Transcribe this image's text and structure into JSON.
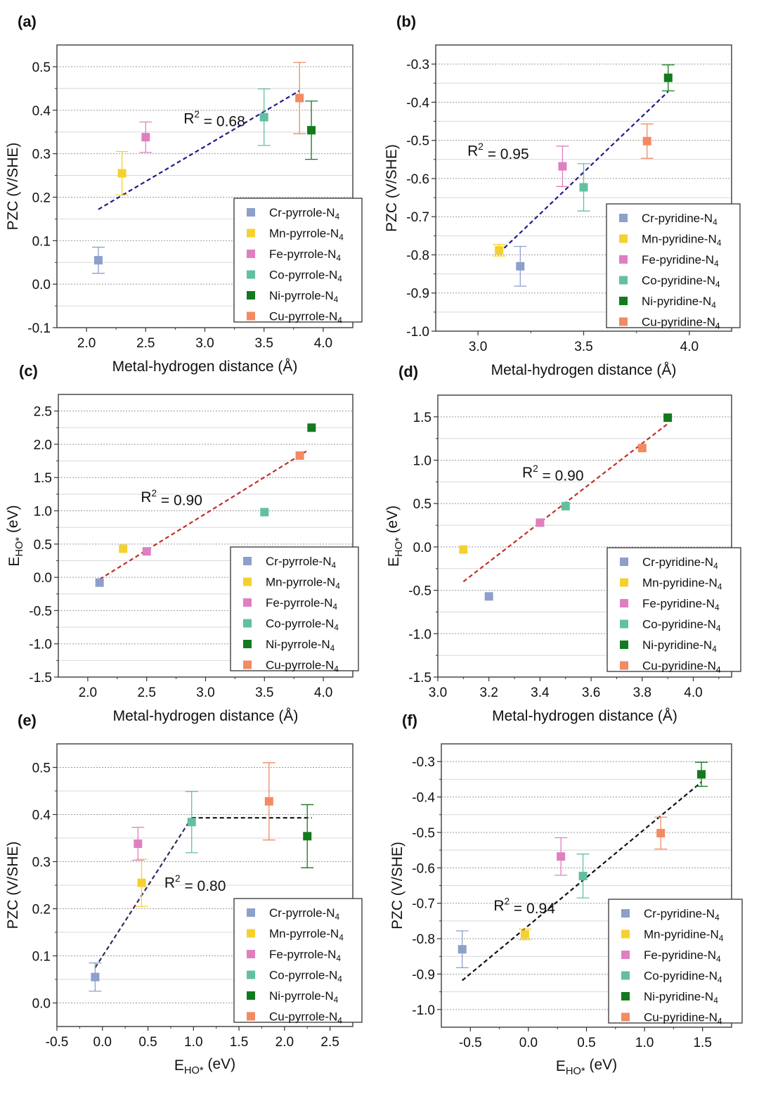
{
  "figure": {
    "panels_count": 6
  },
  "colors": {
    "Cr": "#8d9fcb",
    "Mn": "#f5d130",
    "Fe": "#e07fc0",
    "Co": "#62c0a0",
    "Ni": "#137a1e",
    "Cu": "#f28a62"
  },
  "chart_data": [
    {
      "id": "a",
      "type": "scatter",
      "panel_label": "(a)",
      "xlabel": "Metal-hydrogen distance (Å)",
      "ylabel": "PZC (V/SHE)",
      "ylabel_sub": "",
      "xlabel_sub": "",
      "xlim": [
        1.75,
        4.25
      ],
      "ylim": [
        -0.1,
        0.55
      ],
      "xticks": [
        2.0,
        2.5,
        3.0,
        3.5,
        4.0
      ],
      "xtick_labels": [
        "2.0",
        "2.5",
        "3.0",
        "3.5",
        "4.0"
      ],
      "xminor": [
        2.25,
        2.75,
        3.25,
        3.75
      ],
      "yticks": [
        -0.1,
        0.0,
        0.1,
        0.2,
        0.3,
        0.4,
        0.5
      ],
      "ytick_labels": [
        "-0.1",
        "0.0",
        "0.1",
        "0.2",
        "0.3",
        "0.4",
        "0.5"
      ],
      "yminor": [
        -0.05,
        0.05,
        0.15,
        0.25,
        0.35,
        0.45
      ],
      "grid": true,
      "legend_position": "bottom-right",
      "series": [
        {
          "name": "Cr-pyrrole-N4",
          "metal": "Cr",
          "x": 2.1,
          "y": 0.055,
          "err": 0.03
        },
        {
          "name": "Mn-pyrrole-N4",
          "metal": "Mn",
          "x": 2.3,
          "y": 0.255,
          "err": 0.05
        },
        {
          "name": "Fe-pyrrole-N4",
          "metal": "Fe",
          "x": 2.5,
          "y": 0.338,
          "err": 0.035
        },
        {
          "name": "Co-pyrrole-N4",
          "metal": "Co",
          "x": 3.5,
          "y": 0.384,
          "err": 0.065
        },
        {
          "name": "Ni-pyrrole-N4",
          "metal": "Ni",
          "x": 3.9,
          "y": 0.354,
          "err": 0.067
        },
        {
          "name": "Cu-pyrrole-N4",
          "metal": "Cu",
          "x": 3.8,
          "y": 0.428,
          "err": 0.082
        }
      ],
      "fits": [
        {
          "x1": 2.1,
          "y1": 0.172,
          "x2": 3.8,
          "y2": 0.445,
          "color": "#1c1c8c"
        }
      ],
      "annotation": {
        "text_prefix": "R",
        "sup": "2",
        "text_suffix": " = 0.68",
        "x": 2.82,
        "y": 0.37
      }
    },
    {
      "id": "b",
      "type": "scatter",
      "panel_label": "(b)",
      "xlabel": "Metal-hydrogen distance (Å)",
      "ylabel": "PZC (V/SHE)",
      "ylabel_sub": "",
      "xlabel_sub": "",
      "xlim": [
        2.8,
        4.2
      ],
      "ylim": [
        -1.0,
        -0.25
      ],
      "xticks": [
        3.0,
        3.5,
        4.0
      ],
      "xtick_labels": [
        "3.0",
        "3.5",
        "4.0"
      ],
      "xminor": [
        3.25,
        3.75
      ],
      "yticks": [
        -1.0,
        -0.9,
        -0.8,
        -0.7,
        -0.6,
        -0.5,
        -0.4,
        -0.3
      ],
      "ytick_labels": [
        "-1.0",
        "-0.9",
        "-0.8",
        "-0.7",
        "-0.6",
        "-0.5",
        "-0.4",
        "-0.3"
      ],
      "yminor": [
        -0.95,
        -0.85,
        -0.75,
        -0.65,
        -0.55,
        -0.45,
        -0.35
      ],
      "grid": true,
      "legend_position": "bottom-right",
      "series": [
        {
          "name": "Cr-pyridine-N4",
          "metal": "Cr",
          "x": 3.2,
          "y": -0.83,
          "err": 0.052
        },
        {
          "name": "Mn-pyridine-N4",
          "metal": "Mn",
          "x": 3.1,
          "y": -0.788,
          "err": 0.015
        },
        {
          "name": "Fe-pyridine-N4",
          "metal": "Fe",
          "x": 3.4,
          "y": -0.568,
          "err": 0.053
        },
        {
          "name": "Co-pyridine-N4",
          "metal": "Co",
          "x": 3.5,
          "y": -0.623,
          "err": 0.062
        },
        {
          "name": "Ni-pyridine-N4",
          "metal": "Ni",
          "x": 3.9,
          "y": -0.336,
          "err": 0.034
        },
        {
          "name": "Cu-pyridine-N4",
          "metal": "Cu",
          "x": 3.8,
          "y": -0.502,
          "err": 0.045
        }
      ],
      "fits": [
        {
          "x1": 3.1,
          "y1": -0.795,
          "x2": 3.9,
          "y2": -0.372,
          "color": "#1c1c8c"
        }
      ],
      "annotation": {
        "text_prefix": "R",
        "sup": "2",
        "text_suffix": " = 0.95",
        "x": 2.95,
        "y": -0.54
      }
    },
    {
      "id": "c",
      "type": "scatter",
      "panel_label": "(c)",
      "xlabel": "Metal-hydrogen distance (Å)",
      "ylabel": "E",
      "ylabel_sub": "HO*",
      "ylabel_suffix": " (eV)",
      "xlabel_sub": "",
      "xlim": [
        1.75,
        4.25
      ],
      "ylim": [
        -1.5,
        2.75
      ],
      "xticks": [
        2.0,
        2.5,
        3.0,
        3.5,
        4.0
      ],
      "xtick_labels": [
        "2.0",
        "2.5",
        "3.0",
        "3.5",
        "4.0"
      ],
      "xminor": [
        2.25,
        2.75,
        3.25,
        3.75
      ],
      "yticks": [
        -1.5,
        -1.0,
        -0.5,
        0.0,
        0.5,
        1.0,
        1.5,
        2.0,
        2.5
      ],
      "ytick_labels": [
        "-1.5",
        "-1.0",
        "-0.5",
        "0.0",
        "0.5",
        "1.0",
        "1.5",
        "2.0",
        "2.5"
      ],
      "yminor": [
        -1.25,
        -0.75,
        -0.25,
        0.25,
        0.75,
        1.25,
        1.75,
        2.25
      ],
      "grid": true,
      "legend_position": "bottom-right",
      "series": [
        {
          "name": "Cr-pyrrole-N4",
          "metal": "Cr",
          "x": 2.1,
          "y": -0.08,
          "err": 0
        },
        {
          "name": "Mn-pyrrole-N4",
          "metal": "Mn",
          "x": 2.3,
          "y": 0.43,
          "err": 0
        },
        {
          "name": "Fe-pyrrole-N4",
          "metal": "Fe",
          "x": 2.5,
          "y": 0.39,
          "err": 0
        },
        {
          "name": "Co-pyrrole-N4",
          "metal": "Co",
          "x": 3.5,
          "y": 0.98,
          "err": 0
        },
        {
          "name": "Ni-pyrrole-N4",
          "metal": "Ni",
          "x": 3.9,
          "y": 2.25,
          "err": 0
        },
        {
          "name": "Cu-pyrrole-N4",
          "metal": "Cu",
          "x": 3.8,
          "y": 1.83,
          "err": 0
        }
      ],
      "fits": [
        {
          "x1": 2.1,
          "y1": -0.03,
          "x2": 3.86,
          "y2": 1.9,
          "color": "#c0302a"
        }
      ],
      "annotation": {
        "text_prefix": "R",
        "sup": "2",
        "text_suffix": " = 0.90",
        "x": 2.45,
        "y": 1.13
      }
    },
    {
      "id": "d",
      "type": "scatter",
      "panel_label": "(d)",
      "xlabel": "Metal-hydrogen distance (Å)",
      "ylabel": "E",
      "ylabel_sub": "HO*",
      "ylabel_suffix": " (eV)",
      "xlabel_sub": "",
      "xlim": [
        3.0,
        4.15
      ],
      "ylim": [
        -1.5,
        1.75
      ],
      "xticks": [
        3.0,
        3.2,
        3.4,
        3.6,
        3.8,
        4.0
      ],
      "xtick_labels": [
        "3.0",
        "3.2",
        "3.4",
        "3.6",
        "3.8",
        "4.0"
      ],
      "xminor": [
        3.1,
        3.3,
        3.5,
        3.7,
        3.9,
        4.1
      ],
      "yticks": [
        -1.5,
        -1.0,
        -0.5,
        0.0,
        0.5,
        1.0,
        1.5
      ],
      "ytick_labels": [
        "-1.5",
        "-1.0",
        "-0.5",
        "0.0",
        "0.5",
        "1.0",
        "1.5"
      ],
      "yminor": [
        -1.25,
        -0.75,
        -0.25,
        0.25,
        0.75,
        1.25
      ],
      "grid": true,
      "legend_position": "bottom-right",
      "series": [
        {
          "name": "Cr-pyridine-N4",
          "metal": "Cr",
          "x": 3.2,
          "y": -0.57,
          "err": 0
        },
        {
          "name": "Mn-pyridine-N4",
          "metal": "Mn",
          "x": 3.1,
          "y": -0.03,
          "err": 0
        },
        {
          "name": "Fe-pyridine-N4",
          "metal": "Fe",
          "x": 3.4,
          "y": 0.28,
          "err": 0
        },
        {
          "name": "Co-pyridine-N4",
          "metal": "Co",
          "x": 3.5,
          "y": 0.47,
          "err": 0
        },
        {
          "name": "Ni-pyridine-N4",
          "metal": "Ni",
          "x": 3.9,
          "y": 1.49,
          "err": 0
        },
        {
          "name": "Cu-pyridine-N4",
          "metal": "Cu",
          "x": 3.8,
          "y": 1.14,
          "err": 0
        }
      ],
      "fits": [
        {
          "x1": 3.1,
          "y1": -0.4,
          "x2": 3.9,
          "y2": 1.42,
          "color": "#c0302a"
        }
      ],
      "annotation": {
        "text_prefix": "R",
        "sup": "2",
        "text_suffix": " = 0.90",
        "x": 3.33,
        "y": 0.8
      }
    },
    {
      "id": "e",
      "type": "scatter",
      "panel_label": "(e)",
      "xlabel": "E",
      "xlabel_sub": "HO*",
      "xlabel_suffix": " (eV)",
      "ylabel": "PZC (V/SHE)",
      "ylabel_sub": "",
      "xlim": [
        -0.5,
        2.75
      ],
      "ylim": [
        -0.05,
        0.55
      ],
      "xticks": [
        -0.5,
        0.0,
        0.5,
        1.0,
        1.5,
        2.0,
        2.5
      ],
      "xtick_labels": [
        "-0.5",
        "0.0",
        "0.5",
        "1.0",
        "1.5",
        "2.0",
        "2.5"
      ],
      "xminor": [
        -0.25,
        0.25,
        0.75,
        1.25,
        1.75,
        2.25
      ],
      "yticks": [
        0.0,
        0.1,
        0.2,
        0.3,
        0.4,
        0.5
      ],
      "ytick_labels": [
        "0.0",
        "0.1",
        "0.2",
        "0.3",
        "0.4",
        "0.5"
      ],
      "yminor": [
        0.05,
        0.15,
        0.25,
        0.35,
        0.45
      ],
      "grid": true,
      "legend_position": "bottom-right",
      "series": [
        {
          "name": "Cr-pyrrole-N4",
          "metal": "Cr",
          "x": -0.08,
          "y": 0.055,
          "err": 0.03
        },
        {
          "name": "Mn-pyrrole-N4",
          "metal": "Mn",
          "x": 0.43,
          "y": 0.255,
          "err": 0.05
        },
        {
          "name": "Fe-pyrrole-N4",
          "metal": "Fe",
          "x": 0.39,
          "y": 0.338,
          "err": 0.035
        },
        {
          "name": "Co-pyrrole-N4",
          "metal": "Co",
          "x": 0.98,
          "y": 0.384,
          "err": 0.065
        },
        {
          "name": "Ni-pyrrole-N4",
          "metal": "Ni",
          "x": 2.25,
          "y": 0.354,
          "err": 0.067
        },
        {
          "name": "Cu-pyrrole-N4",
          "metal": "Cu",
          "x": 1.83,
          "y": 0.428,
          "err": 0.082
        }
      ],
      "fits": [
        {
          "x1": -0.08,
          "y1": 0.075,
          "x2": 0.98,
          "y2": 0.393,
          "color": "#3a2a5a"
        },
        {
          "x1": 0.98,
          "y1": 0.393,
          "x2": 2.3,
          "y2": 0.393,
          "color": "#111111"
        }
      ],
      "annotation": {
        "text_prefix": "R",
        "sup": "2",
        "text_suffix": " = 0.80",
        "x": 0.68,
        "y": 0.245
      }
    },
    {
      "id": "f",
      "type": "scatter",
      "panel_label": "(f)",
      "xlabel": "E",
      "xlabel_sub": "HO*",
      "xlabel_suffix": " (eV)",
      "ylabel": "PZC (V/SHE)",
      "ylabel_sub": "",
      "xlim": [
        -0.75,
        1.75
      ],
      "ylim": [
        -1.05,
        -0.25
      ],
      "xticks": [
        -0.5,
        0.0,
        0.5,
        1.0,
        1.5
      ],
      "xtick_labels": [
        "-0.5",
        "0.0",
        "0.5",
        "1.0",
        "1.5"
      ],
      "xminor": [
        -0.25,
        0.25,
        0.75,
        1.25
      ],
      "yticks": [
        -1.0,
        -0.9,
        -0.8,
        -0.7,
        -0.6,
        -0.5,
        -0.4,
        -0.3
      ],
      "ytick_labels": [
        "-1.0",
        "-0.9",
        "-0.8",
        "-0.7",
        "-0.6",
        "-0.5",
        "-0.4",
        "-0.3"
      ],
      "yminor": [
        -0.95,
        -0.85,
        -0.75,
        -0.65,
        -0.55,
        -0.45,
        -0.35
      ],
      "grid": true,
      "legend_position": "bottom-right",
      "series": [
        {
          "name": "Cr-pyridine-N4",
          "metal": "Cr",
          "x": -0.57,
          "y": -0.83,
          "err": 0.052
        },
        {
          "name": "Mn-pyridine-N4",
          "metal": "Mn",
          "x": -0.03,
          "y": -0.788,
          "err": 0.015
        },
        {
          "name": "Fe-pyridine-N4",
          "metal": "Fe",
          "x": 0.28,
          "y": -0.568,
          "err": 0.053
        },
        {
          "name": "Co-pyridine-N4",
          "metal": "Co",
          "x": 0.47,
          "y": -0.623,
          "err": 0.062
        },
        {
          "name": "Ni-pyridine-N4",
          "metal": "Ni",
          "x": 1.49,
          "y": -0.336,
          "err": 0.034
        },
        {
          "name": "Cu-pyridine-N4",
          "metal": "Cu",
          "x": 1.14,
          "y": -0.502,
          "err": 0.045
        }
      ],
      "fits": [
        {
          "x1": -0.57,
          "y1": -0.918,
          "x2": 1.49,
          "y2": -0.358,
          "color": "#111111"
        }
      ],
      "annotation": {
        "text_prefix": "R",
        "sup": "2",
        "text_suffix": " = 0.94",
        "x": -0.3,
        "y": -0.72
      }
    }
  ]
}
